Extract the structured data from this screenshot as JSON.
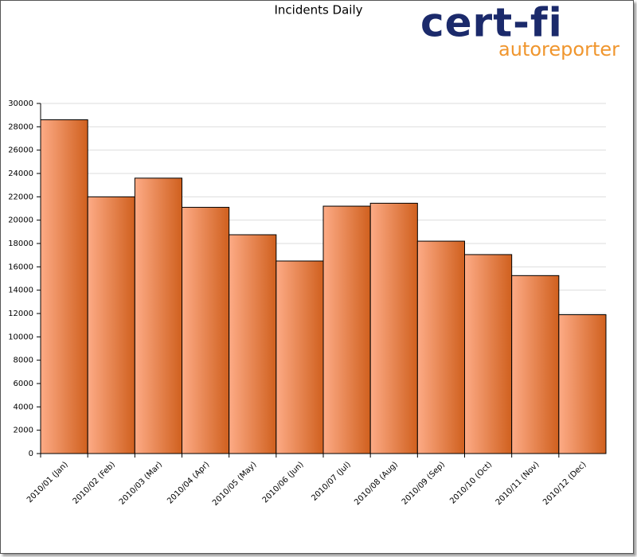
{
  "chart_data": {
    "type": "bar",
    "title": "Incidents Daily",
    "categories": [
      "2010/01 (Jan)",
      "2010/02 (Feb)",
      "2010/03 (Mar)",
      "2010/04 (Apr)",
      "2010/05 (May)",
      "2010/06 (Jun)",
      "2010/07 (Jul)",
      "2010/08 (Aug)",
      "2010/09 (Sep)",
      "2010/10 (Oct)",
      "2010/11 (Nov)",
      "2010/12 (Dec)"
    ],
    "values": [
      28600,
      22000,
      23600,
      21100,
      18750,
      16500,
      21200,
      21450,
      18200,
      17050,
      15250,
      11900
    ],
    "colors": [
      "#fdab86",
      "#d0601e"
    ],
    "ylim": [
      0,
      30000
    ],
    "yticks": [
      0,
      2000,
      4000,
      6000,
      8000,
      10000,
      12000,
      14000,
      16000,
      18000,
      20000,
      22000,
      24000,
      26000,
      28000,
      30000
    ],
    "grid": true
  },
  "logo": {
    "name": "cert-fi",
    "tagline": "autoreporter"
  }
}
